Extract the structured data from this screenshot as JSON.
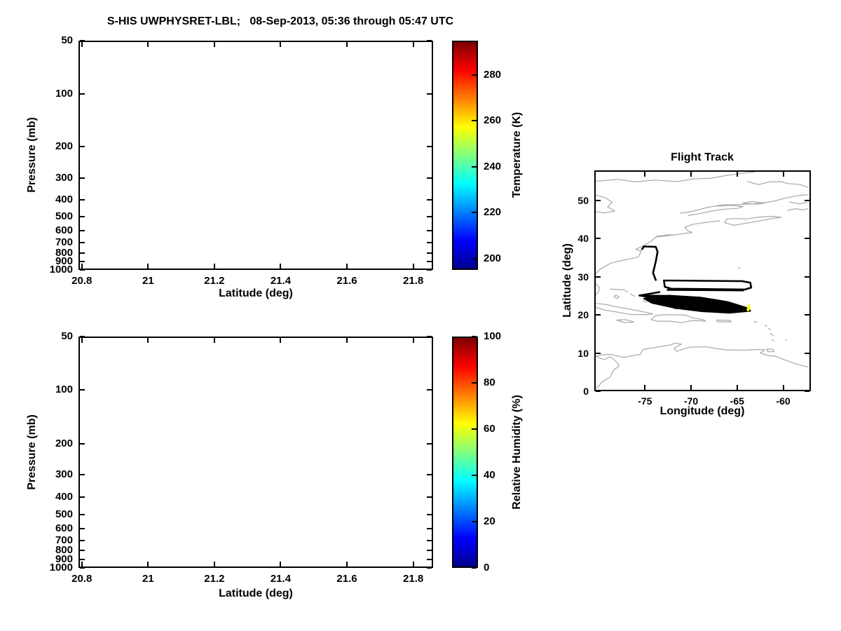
{
  "figure": {
    "title": "S-HIS UWPHYSRET-LBL;   08-Sep-2013, 05:36 through 05:47 UTC",
    "background": "#FFFFFF"
  },
  "chart_data": [
    {
      "id": "temperature_cross_section",
      "type": "heatmap",
      "title": "S-HIS UWPHYSRET-LBL;   08-Sep-2013, 05:36 through 05:47 UTC",
      "xlabel": "Latitude (deg)",
      "ylabel": "Pressure (mb)",
      "xlim": [
        20.79,
        21.86
      ],
      "xticks": [
        20.8,
        21,
        21.2,
        21.4,
        21.6,
        21.8
      ],
      "xtick_labels": [
        "20.8",
        "21",
        "21.2",
        "21.4",
        "21.6",
        "21.8"
      ],
      "yscale": "log",
      "y_axis_reversed": true,
      "ylim": [
        50,
        1000
      ],
      "yticks": [
        50,
        100,
        200,
        300,
        400,
        500,
        600,
        700,
        800,
        900,
        1000
      ],
      "grid": false,
      "values": [],
      "note": "plot area is empty (no retrieval field rendered)",
      "colorbar": {
        "label": "Temperature (K)",
        "range": [
          195,
          295
        ],
        "ticks": [
          200,
          220,
          240,
          260,
          280
        ],
        "colormap": "jet",
        "stops": [
          {
            "pos": 0,
            "color": "#00008F"
          },
          {
            "pos": 0.125,
            "color": "#0000FF"
          },
          {
            "pos": 0.375,
            "color": "#00FFFF"
          },
          {
            "pos": 0.625,
            "color": "#FFFF00"
          },
          {
            "pos": 0.875,
            "color": "#FF0000"
          },
          {
            "pos": 1,
            "color": "#7F0000"
          }
        ]
      }
    },
    {
      "id": "humidity_cross_section",
      "type": "heatmap",
      "title": "",
      "xlabel": "Latitude (deg)",
      "ylabel": "Pressure (mb)",
      "xlim": [
        20.79,
        21.86
      ],
      "xticks": [
        20.8,
        21,
        21.2,
        21.4,
        21.6,
        21.8
      ],
      "xtick_labels": [
        "20.8",
        "21",
        "21.2",
        "21.4",
        "21.6",
        "21.8"
      ],
      "yscale": "log",
      "y_axis_reversed": true,
      "ylim": [
        50,
        1000
      ],
      "yticks": [
        50,
        100,
        200,
        300,
        400,
        500,
        600,
        700,
        800,
        900,
        1000
      ],
      "grid": false,
      "values": [],
      "note": "plot area is empty (no retrieval field rendered)",
      "colorbar": {
        "label": "Relative Humidity (%)",
        "range": [
          0,
          100
        ],
        "ticks": [
          0,
          20,
          40,
          60,
          80,
          100
        ],
        "colormap": "jet",
        "stops": [
          {
            "pos": 0,
            "color": "#00008F"
          },
          {
            "pos": 0.125,
            "color": "#0000FF"
          },
          {
            "pos": 0.375,
            "color": "#00FFFF"
          },
          {
            "pos": 0.625,
            "color": "#FFFF00"
          },
          {
            "pos": 0.875,
            "color": "#FF0000"
          },
          {
            "pos": 1,
            "color": "#7F0000"
          }
        ]
      }
    },
    {
      "id": "flight_track_map",
      "type": "line",
      "title": "Flight Track",
      "xlabel": "Longitude (deg)",
      "ylabel": "Latitude (deg)",
      "xlim": [
        -80.5,
        -57
      ],
      "xticks": [
        -75,
        -70,
        -65,
        -60
      ],
      "xtick_labels": [
        "-75",
        "-70",
        "-65",
        "-60"
      ],
      "ylim": [
        0,
        57.8
      ],
      "yticks": [
        0,
        10,
        20,
        30,
        40,
        50
      ],
      "grid": false,
      "coastline_color": "#A8A8A8",
      "track_color": "#000000",
      "highlight_color": "#FFFF00",
      "coastlines": [
        [
          [
            -80.5,
            55.3
          ],
          [
            -78.0,
            55.8
          ],
          [
            -76.2,
            55.1
          ],
          [
            -74.0,
            55.6
          ],
          [
            -71.5,
            55.2
          ],
          [
            -69.8,
            55.9
          ],
          [
            -67.8,
            56.1
          ],
          [
            -66.2,
            56.8
          ],
          [
            -64.6,
            57.3
          ],
          [
            -63.0,
            57.8
          ]
        ],
        [
          [
            -63.8,
            55.2
          ],
          [
            -62.6,
            54.4
          ],
          [
            -61.4,
            55.1
          ],
          [
            -60.2,
            55.2
          ],
          [
            -59.4,
            54.7
          ],
          [
            -58.0,
            54.4
          ],
          [
            -57.2,
            53.7
          ]
        ],
        [
          [
            -80.5,
            51.6
          ],
          [
            -79.4,
            50.9
          ],
          [
            -78.7,
            49.7
          ],
          [
            -79.2,
            48.5
          ],
          [
            -78.4,
            47.4
          ],
          [
            -79.6,
            46.9
          ],
          [
            -80.5,
            47.2
          ]
        ],
        [
          [
            -71.2,
            46.8
          ],
          [
            -69.9,
            47.3
          ],
          [
            -68.3,
            48.3
          ],
          [
            -66.6,
            49.0
          ],
          [
            -64.9,
            49.1
          ],
          [
            -63.1,
            49.3
          ],
          [
            -61.1,
            49.9
          ],
          [
            -59.7,
            50.8
          ],
          [
            -58.3,
            51.5
          ],
          [
            -57.2,
            51.7
          ]
        ],
        [
          [
            -70.3,
            46.2
          ],
          [
            -69.1,
            46.7
          ],
          [
            -67.9,
            47.3
          ],
          [
            -66.4,
            47.9
          ],
          [
            -64.9,
            48.1
          ],
          [
            -64.3,
            48.6
          ],
          [
            -65.6,
            48.9
          ],
          [
            -67.2,
            48.7
          ]
        ],
        [
          [
            -64.4,
            49.5
          ],
          [
            -62.8,
            49.2
          ],
          [
            -61.9,
            49.5
          ],
          [
            -63.3,
            49.9
          ],
          [
            -64.4,
            49.5
          ]
        ],
        [
          [
            -66.3,
            44.3
          ],
          [
            -65.3,
            43.6
          ],
          [
            -64.1,
            44.1
          ],
          [
            -62.7,
            44.7
          ],
          [
            -61.4,
            45.3
          ],
          [
            -60.1,
            45.7
          ],
          [
            -61.0,
            46.0
          ],
          [
            -62.5,
            45.8
          ],
          [
            -63.9,
            45.3
          ],
          [
            -65.0,
            45.4
          ],
          [
            -66.1,
            45.3
          ],
          [
            -66.3,
            44.3
          ]
        ],
        [
          [
            -59.4,
            47.6
          ],
          [
            -58.5,
            48.0
          ],
          [
            -57.7,
            47.7
          ],
          [
            -57.2,
            48.0
          ]
        ],
        [
          [
            -59.2,
            49.8
          ],
          [
            -58.1,
            49.3
          ],
          [
            -57.3,
            49.7
          ]
        ],
        [
          [
            -80.5,
            30.7
          ],
          [
            -80.0,
            32.0
          ],
          [
            -78.9,
            33.5
          ],
          [
            -77.8,
            34.2
          ],
          [
            -75.8,
            35.2
          ],
          [
            -75.5,
            36.8
          ],
          [
            -76.1,
            37.2
          ],
          [
            -75.2,
            38.3
          ],
          [
            -74.4,
            39.4
          ],
          [
            -73.9,
            40.5
          ],
          [
            -72.3,
            40.9
          ],
          [
            -70.6,
            41.5
          ],
          [
            -69.9,
            41.7
          ],
          [
            -70.4,
            42.2
          ],
          [
            -70.7,
            43.1
          ],
          [
            -69.8,
            43.9
          ],
          [
            -68.3,
            44.4
          ],
          [
            -66.9,
            44.8
          ]
        ],
        [
          [
            -73.8,
            40.7
          ],
          [
            -72.4,
            41.1
          ],
          [
            -71.9,
            41.0
          ]
        ],
        [
          [
            -80.5,
            28.2
          ],
          [
            -80.1,
            27.1
          ],
          [
            -80.2,
            25.9
          ],
          [
            -80.5,
            25.1
          ]
        ],
        [
          [
            -78.9,
            26.7
          ],
          [
            -77.8,
            26.5
          ],
          [
            -77.4,
            26.6
          ]
        ],
        [
          [
            -77.3,
            26.4
          ],
          [
            -77.0,
            25.9
          ]
        ],
        [
          [
            -78.3,
            25.1
          ],
          [
            -77.9,
            24.6
          ],
          [
            -78.2,
            24.2
          ],
          [
            -78.5,
            24.7
          ],
          [
            -78.3,
            25.1
          ]
        ],
        [
          [
            -76.7,
            25.4
          ],
          [
            -76.2,
            24.8
          ]
        ],
        [
          [
            -75.3,
            23.6
          ],
          [
            -74.9,
            23.2
          ]
        ],
        [
          [
            -64.8,
            32.3
          ],
          [
            -64.6,
            32.2
          ]
        ],
        [
          [
            -80.5,
            22.9
          ],
          [
            -79.3,
            22.6
          ],
          [
            -78.0,
            21.9
          ],
          [
            -76.6,
            21.3
          ],
          [
            -75.3,
            20.7
          ],
          [
            -74.2,
            20.1
          ],
          [
            -75.0,
            19.9
          ],
          [
            -76.8,
            20.0
          ],
          [
            -78.1,
            20.6
          ],
          [
            -79.4,
            21.1
          ],
          [
            -80.5,
            21.9
          ]
        ],
        [
          [
            -78.2,
            18.5
          ],
          [
            -77.3,
            17.8
          ],
          [
            -76.3,
            18.0
          ],
          [
            -77.2,
            18.6
          ],
          [
            -78.2,
            18.5
          ]
        ],
        [
          [
            -74.4,
            18.6
          ],
          [
            -73.9,
            19.7
          ],
          [
            -72.8,
            19.9
          ],
          [
            -71.7,
            19.9
          ],
          [
            -70.6,
            19.8
          ],
          [
            -69.9,
            19.1
          ],
          [
            -68.7,
            18.6
          ],
          [
            -68.4,
            18.2
          ],
          [
            -69.8,
            18.4
          ],
          [
            -71.1,
            17.8
          ],
          [
            -72.4,
            18.2
          ],
          [
            -73.7,
            18.2
          ],
          [
            -74.4,
            18.6
          ]
        ],
        [
          [
            -67.2,
            18.5
          ],
          [
            -65.7,
            18.4
          ],
          [
            -65.6,
            18.0
          ],
          [
            -67.1,
            18.0
          ],
          [
            -67.2,
            18.5
          ]
        ],
        [
          [
            -71.9,
            21.5
          ],
          [
            -71.5,
            21.4
          ]
        ],
        [
          [
            -63.1,
            18.1
          ],
          [
            -62.8,
            17.9
          ]
        ],
        [
          [
            -61.9,
            17.1
          ],
          [
            -61.7,
            16.9
          ]
        ],
        [
          [
            -61.5,
            16.3
          ],
          [
            -61.3,
            15.9
          ]
        ],
        [
          [
            -61.3,
            14.9
          ],
          [
            -61.0,
            14.4
          ]
        ],
        [
          [
            -61.1,
            13.3
          ],
          [
            -60.9,
            13.0
          ]
        ],
        [
          [
            -59.6,
            13.3
          ],
          [
            -59.5,
            13.1
          ]
        ],
        [
          [
            -61.7,
            10.8
          ],
          [
            -61.0,
            10.7
          ],
          [
            -60.9,
            10.1
          ],
          [
            -61.6,
            10.1
          ],
          [
            -61.7,
            10.8
          ]
        ],
        [
          [
            -80.5,
            8.9
          ],
          [
            -79.8,
            9.3
          ],
          [
            -78.9,
            9.4
          ],
          [
            -77.4,
            8.6
          ],
          [
            -76.8,
            8.9
          ],
          [
            -75.6,
            9.4
          ],
          [
            -75.3,
            10.7
          ],
          [
            -74.5,
            11.0
          ],
          [
            -72.3,
            11.9
          ],
          [
            -71.7,
            12.4
          ],
          [
            -71.1,
            12.1
          ],
          [
            -71.9,
            11.0
          ],
          [
            -71.6,
            10.2
          ],
          [
            -70.2,
            11.3
          ],
          [
            -68.4,
            11.4
          ],
          [
            -66.3,
            10.6
          ],
          [
            -64.2,
            10.5
          ],
          [
            -62.7,
            10.7
          ],
          [
            -61.9,
            10.6
          ],
          [
            -62.4,
            9.8
          ],
          [
            -61.6,
            9.1
          ],
          [
            -60.7,
            8.9
          ],
          [
            -60.0,
            8.2
          ],
          [
            -58.9,
            7.2
          ],
          [
            -57.8,
            6.4
          ],
          [
            -57.2,
            6.1
          ]
        ],
        [
          [
            -80.5,
            8.9
          ],
          [
            -79.6,
            8.0
          ],
          [
            -78.9,
            8.8
          ],
          [
            -78.2,
            7.4
          ],
          [
            -77.9,
            6.4
          ],
          [
            -78.6,
            5.1
          ],
          [
            -78.9,
            3.4
          ],
          [
            -79.8,
            2.1
          ],
          [
            -80.4,
            0.4
          ]
        ]
      ],
      "track_segments": [
        [
          [
            -75.4,
            37.3
          ],
          [
            -75.2,
            38.0
          ],
          [
            -73.9,
            37.9
          ],
          [
            -73.7,
            36.6
          ],
          [
            -73.9,
            34.0
          ],
          [
            -74.2,
            31.0
          ],
          [
            -73.9,
            29.1
          ]
        ],
        [
          [
            -73.0,
            29.0
          ],
          [
            -64.4,
            28.8
          ],
          [
            -63.5,
            28.4
          ],
          [
            -63.4,
            27.1
          ],
          [
            -64.1,
            26.6
          ],
          [
            -72.2,
            26.8
          ],
          [
            -72.9,
            27.3
          ],
          [
            -73.0,
            29.0
          ]
        ],
        [
          [
            -72.6,
            26.5
          ],
          [
            -64.3,
            26.35
          ]
        ],
        [
          [
            -73.5,
            25.9
          ],
          [
            -75.7,
            25.0
          ],
          [
            -73.5,
            24.2
          ]
        ],
        [
          [
            -75.5,
            25.0
          ],
          [
            -72.8,
            24.9
          ]
        ],
        [
          [
            -72.8,
            24.9
          ],
          [
            -71.5,
            24.1
          ]
        ]
      ],
      "track_fill": [
        [
          [
            -75.2,
            24.2
          ],
          [
            -72.5,
            25.0
          ],
          [
            -69.0,
            24.5
          ],
          [
            -66.0,
            23.3
          ],
          [
            -63.7,
            21.6
          ],
          [
            -63.5,
            20.9
          ],
          [
            -65.8,
            20.4
          ],
          [
            -68.8,
            20.8
          ],
          [
            -71.8,
            21.7
          ],
          [
            -74.3,
            23.0
          ],
          [
            -75.2,
            24.2
          ]
        ]
      ],
      "highlight_segment": [
        [
          -63.75,
          21.2
        ],
        [
          -63.65,
          22.2
        ]
      ]
    }
  ]
}
